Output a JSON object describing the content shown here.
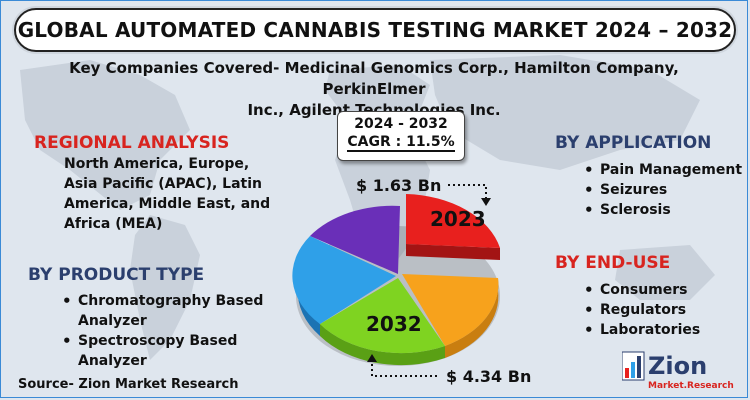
{
  "title": "GLOBAL AUTOMATED CANNABIS TESTING MARKET 2024 – 2032",
  "companies": {
    "line1": "Key Companies Covered- Medicinal Genomics Corp., Hamilton Company, PerkinElmer",
    "line2": "Inc., Agilent Technologies Inc."
  },
  "regional": {
    "title": "REGIONAL ANALYSIS",
    "lines": [
      "North America, Europe,",
      "Asia Pacific (APAC), Latin",
      "America, Middle East, and",
      "Africa (MEA)"
    ]
  },
  "product_type": {
    "title": "BY PRODUCT TYPE",
    "items": [
      {
        "line1": "Chromatography Based",
        "line2": "Analyzer"
      },
      {
        "line1": "Spectroscopy Based",
        "line2": "Analyzer"
      }
    ]
  },
  "application": {
    "title": "BY APPLICATION",
    "items": [
      "Pain Management",
      "Seizures",
      "Sclerosis"
    ]
  },
  "end_use": {
    "title": "BY END-USE",
    "items": [
      "Consumers",
      "Regulators",
      "Laboratories"
    ]
  },
  "cagr": {
    "period": "2024 - 2032",
    "value": "CAGR : 11.5%"
  },
  "market_values": {
    "year_start": "2023",
    "value_start": "$ 1.63 Bn",
    "year_end": "2032",
    "value_end": "$ 4.34 Bn"
  },
  "source": "Source- Zion Market Research",
  "logo": {
    "name": "Zion",
    "tagline": "Market.Research"
  },
  "colors": {
    "red_slice": "#e8201e",
    "orange_slice": "#f7a21c",
    "green_slice": "#7fd321",
    "blue_slice": "#2fa0e8",
    "purple_slice": "#6a2fb8",
    "accent_red": "#d8241f",
    "navy": "#2b3f6e"
  }
}
